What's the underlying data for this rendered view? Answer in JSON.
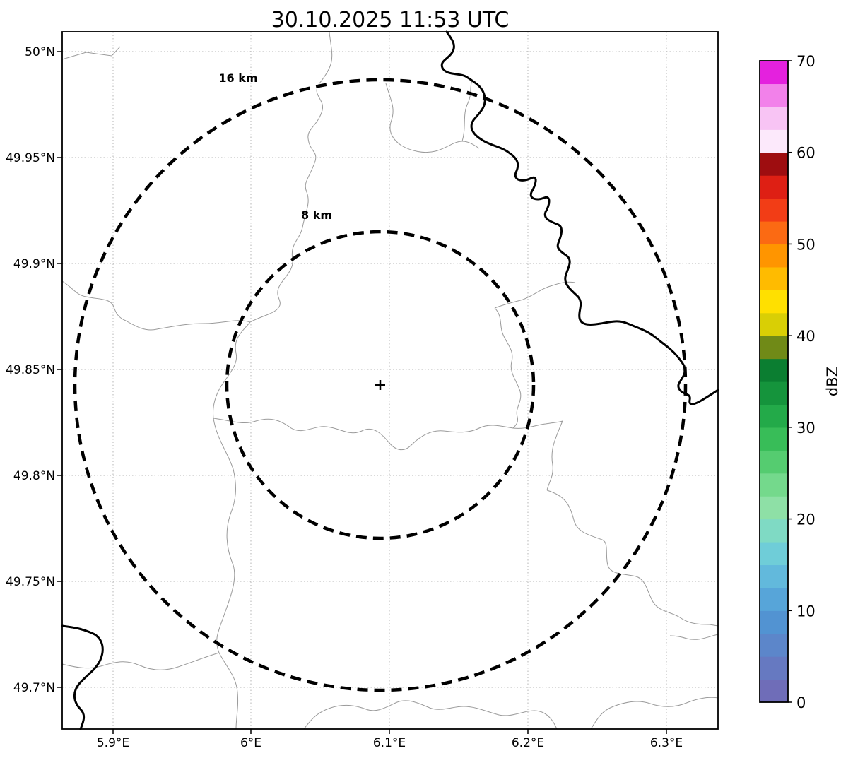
{
  "title": "30.10.2025 11:53 UTC",
  "map": {
    "lat_ticks": [
      "50°N",
      "49.95°N",
      "49.9°N",
      "49.85°N",
      "49.8°N",
      "49.75°N",
      "49.7°N"
    ],
    "lon_ticks": [
      "5.9°E",
      "6°E",
      "6.1°E",
      "6.2°E",
      "6.3°E"
    ],
    "range_rings": [
      {
        "label": "16 km"
      },
      {
        "label": "8 km"
      }
    ],
    "radar_marker_symbol": "+"
  },
  "colorbar": {
    "label": "dBZ",
    "min": 0,
    "max": 70,
    "tick_labels": [
      "70",
      "60",
      "50",
      "40",
      "30",
      "20",
      "10",
      "0"
    ],
    "segments": [
      {
        "from": 0,
        "to": 2.5,
        "color": "#6f6db8"
      },
      {
        "from": 2.5,
        "to": 5,
        "color": "#6679c1"
      },
      {
        "from": 5,
        "to": 7.5,
        "color": "#5c86ca"
      },
      {
        "from": 7.5,
        "to": 10,
        "color": "#5293d2"
      },
      {
        "from": 10,
        "to": 12.5,
        "color": "#57a5d9"
      },
      {
        "from": 12.5,
        "to": 15,
        "color": "#62b9dc"
      },
      {
        "from": 15,
        "to": 17.5,
        "color": "#6fcdd8"
      },
      {
        "from": 17.5,
        "to": 20,
        "color": "#7fdac4"
      },
      {
        "from": 20,
        "to": 22.5,
        "color": "#8ee0a6"
      },
      {
        "from": 22.5,
        "to": 25,
        "color": "#74d98c"
      },
      {
        "from": 25,
        "to": 27.5,
        "color": "#55cc70"
      },
      {
        "from": 27.5,
        "to": 30,
        "color": "#38bd58"
      },
      {
        "from": 30,
        "to": 32.5,
        "color": "#23aa49"
      },
      {
        "from": 32.5,
        "to": 35,
        "color": "#15943c"
      },
      {
        "from": 35,
        "to": 37.5,
        "color": "#0b7e31"
      },
      {
        "from": 37.5,
        "to": 40,
        "color": "#708a17"
      },
      {
        "from": 40,
        "to": 42.5,
        "color": "#d9cf05"
      },
      {
        "from": 42.5,
        "to": 45,
        "color": "#ffe000"
      },
      {
        "from": 45,
        "to": 47.5,
        "color": "#ffbb00"
      },
      {
        "from": 47.5,
        "to": 50,
        "color": "#ff9500"
      },
      {
        "from": 50,
        "to": 52.5,
        "color": "#fb6a13"
      },
      {
        "from": 52.5,
        "to": 55,
        "color": "#f23d16"
      },
      {
        "from": 55,
        "to": 57.5,
        "color": "#de1f14"
      },
      {
        "from": 57.5,
        "to": 60,
        "color": "#9e0d10"
      },
      {
        "from": 60,
        "to": 62.5,
        "color": "#fce9fb"
      },
      {
        "from": 62.5,
        "to": 65,
        "color": "#f8c4f4"
      },
      {
        "from": 65,
        "to": 67.5,
        "color": "#f281ea"
      },
      {
        "from": 67.5,
        "to": 70,
        "color": "#e421de"
      }
    ]
  }
}
